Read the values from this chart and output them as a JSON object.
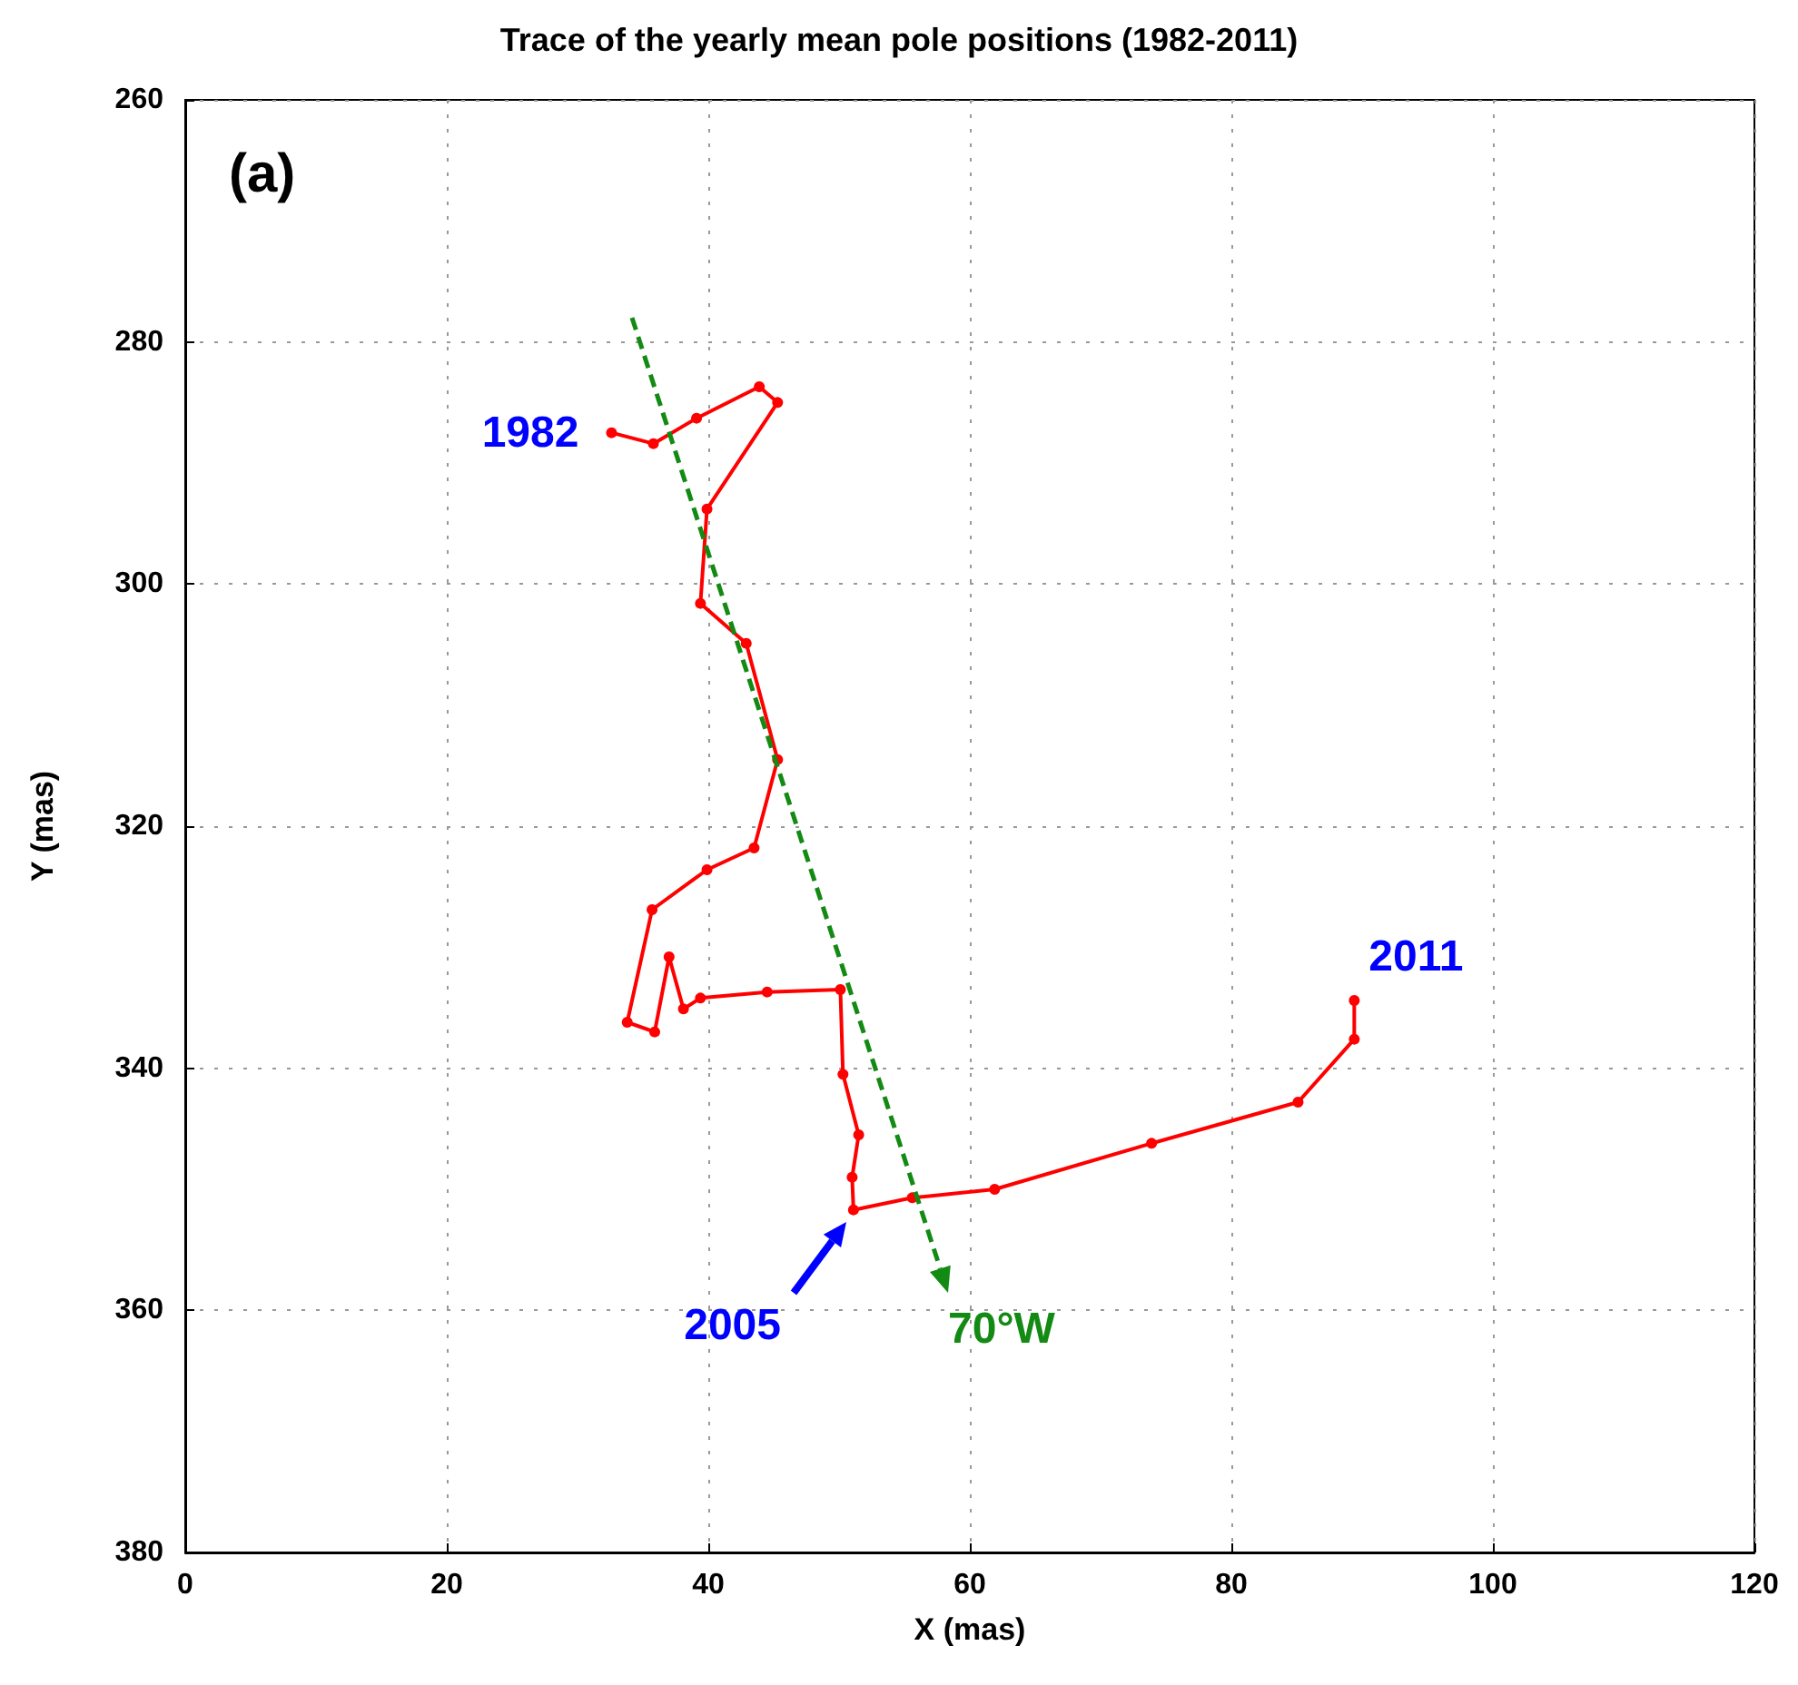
{
  "chart_data": {
    "type": "line",
    "title": "Trace of the yearly mean pole positions (1982-2011)",
    "xlabel": "X (mas)",
    "ylabel": "Y (mas)",
    "x": [
      32.6,
      35.8,
      39.1,
      43.9,
      45.3,
      39.9,
      39.4,
      42.9,
      45.3,
      43.5,
      39.9,
      35.7,
      33.8,
      35.9,
      37.0,
      38.1,
      39.4,
      44.5,
      50.1,
      50.3,
      51.5,
      51.0,
      51.1,
      55.6,
      61.9,
      73.9,
      85.1,
      89.4,
      89.4
    ],
    "series": [
      {
        "color": "#ff0000",
        "values": [
          287.5,
          288.4,
          286.3,
          283.7,
          285.0,
          293.8,
          301.6,
          304.9,
          314.5,
          321.8,
          323.6,
          326.9,
          336.2,
          337.0,
          330.8,
          335.1,
          334.2,
          333.7,
          333.5,
          340.5,
          345.5,
          349.0,
          351.7,
          350.7,
          350.0,
          346.2,
          342.8,
          337.6,
          334.4
        ],
        "marker": "circle",
        "line_style": "solid"
      }
    ],
    "xlim": [
      0,
      120
    ],
    "xticks": [
      0,
      20,
      40,
      60,
      80,
      100,
      120
    ],
    "ylim": [
      380,
      260
    ],
    "yticks": [
      260,
      280,
      300,
      320,
      340,
      360,
      380
    ],
    "grid": true,
    "annotations": [
      "(a)",
      {
        "text": "1982",
        "x": 32.6,
        "y": 287.5
      },
      "2005",
      {
        "text": "2011",
        "x": 89.4,
        "y": 334.4
      },
      "70°W"
    ]
  }
}
